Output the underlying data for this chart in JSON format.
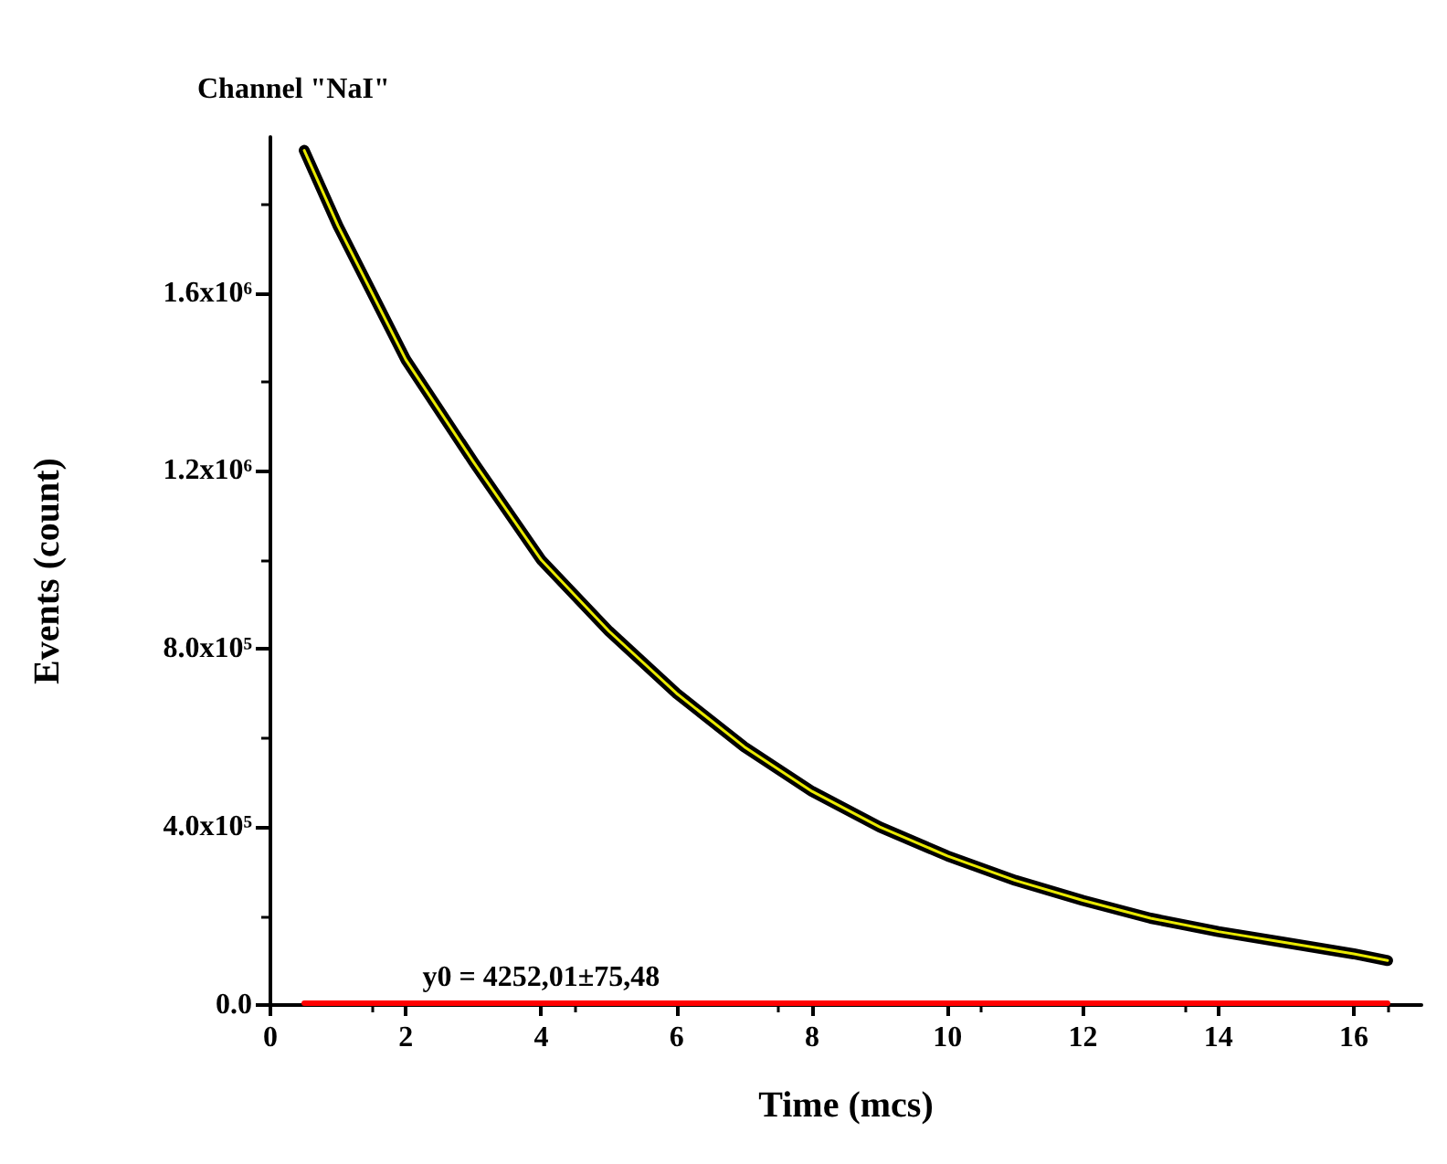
{
  "chart_data": {
    "type": "line",
    "title": "Channel \"NaI\"",
    "xlabel": "Time (mcs)",
    "ylabel": "Events (count)",
    "x": [
      0.5,
      1,
      2,
      3,
      4,
      5,
      6,
      7,
      8,
      9,
      10,
      11,
      12,
      13,
      14,
      15,
      16,
      16.5
    ],
    "series": [
      {
        "color": "#000000",
        "values": [
          1920000,
          1750000,
          1450000,
          1220000,
          1000000,
          840000,
          700000,
          580000,
          480000,
          400000,
          335000,
          280000,
          235000,
          195000,
          165000,
          140000,
          115000,
          100000
        ]
      },
      {
        "color": "#e8e800",
        "values": [
          1920000,
          1750000,
          1450000,
          1220000,
          1000000,
          840000,
          700000,
          580000,
          480000,
          400000,
          335000,
          280000,
          235000,
          195000,
          165000,
          140000,
          115000,
          100000
        ]
      },
      {
        "color": "#ff0000",
        "x": [
          0.5,
          16.5
        ],
        "values": [
          4252.01,
          4252.01
        ]
      }
    ],
    "annotations": [
      {
        "text": "y0 = 4252,01±75,48",
        "x": 4,
        "y": 4252.01
      }
    ],
    "xlim": [
      0,
      17
    ],
    "xticks": [
      0,
      2,
      4,
      6,
      8,
      10,
      12,
      14,
      16
    ],
    "ylim": [
      0,
      1950000
    ],
    "yticks": [
      {
        "value": 0,
        "label": "0.0"
      },
      {
        "value": 400000,
        "label": "4.0x10⁵"
      },
      {
        "value": 800000,
        "label": "8.0x10⁵"
      },
      {
        "value": 1200000,
        "label": "1.2x10⁶"
      },
      {
        "value": 1600000,
        "label": "1.6x10⁶"
      }
    ],
    "grid": false,
    "marker": "none",
    "line_style": "solid"
  }
}
